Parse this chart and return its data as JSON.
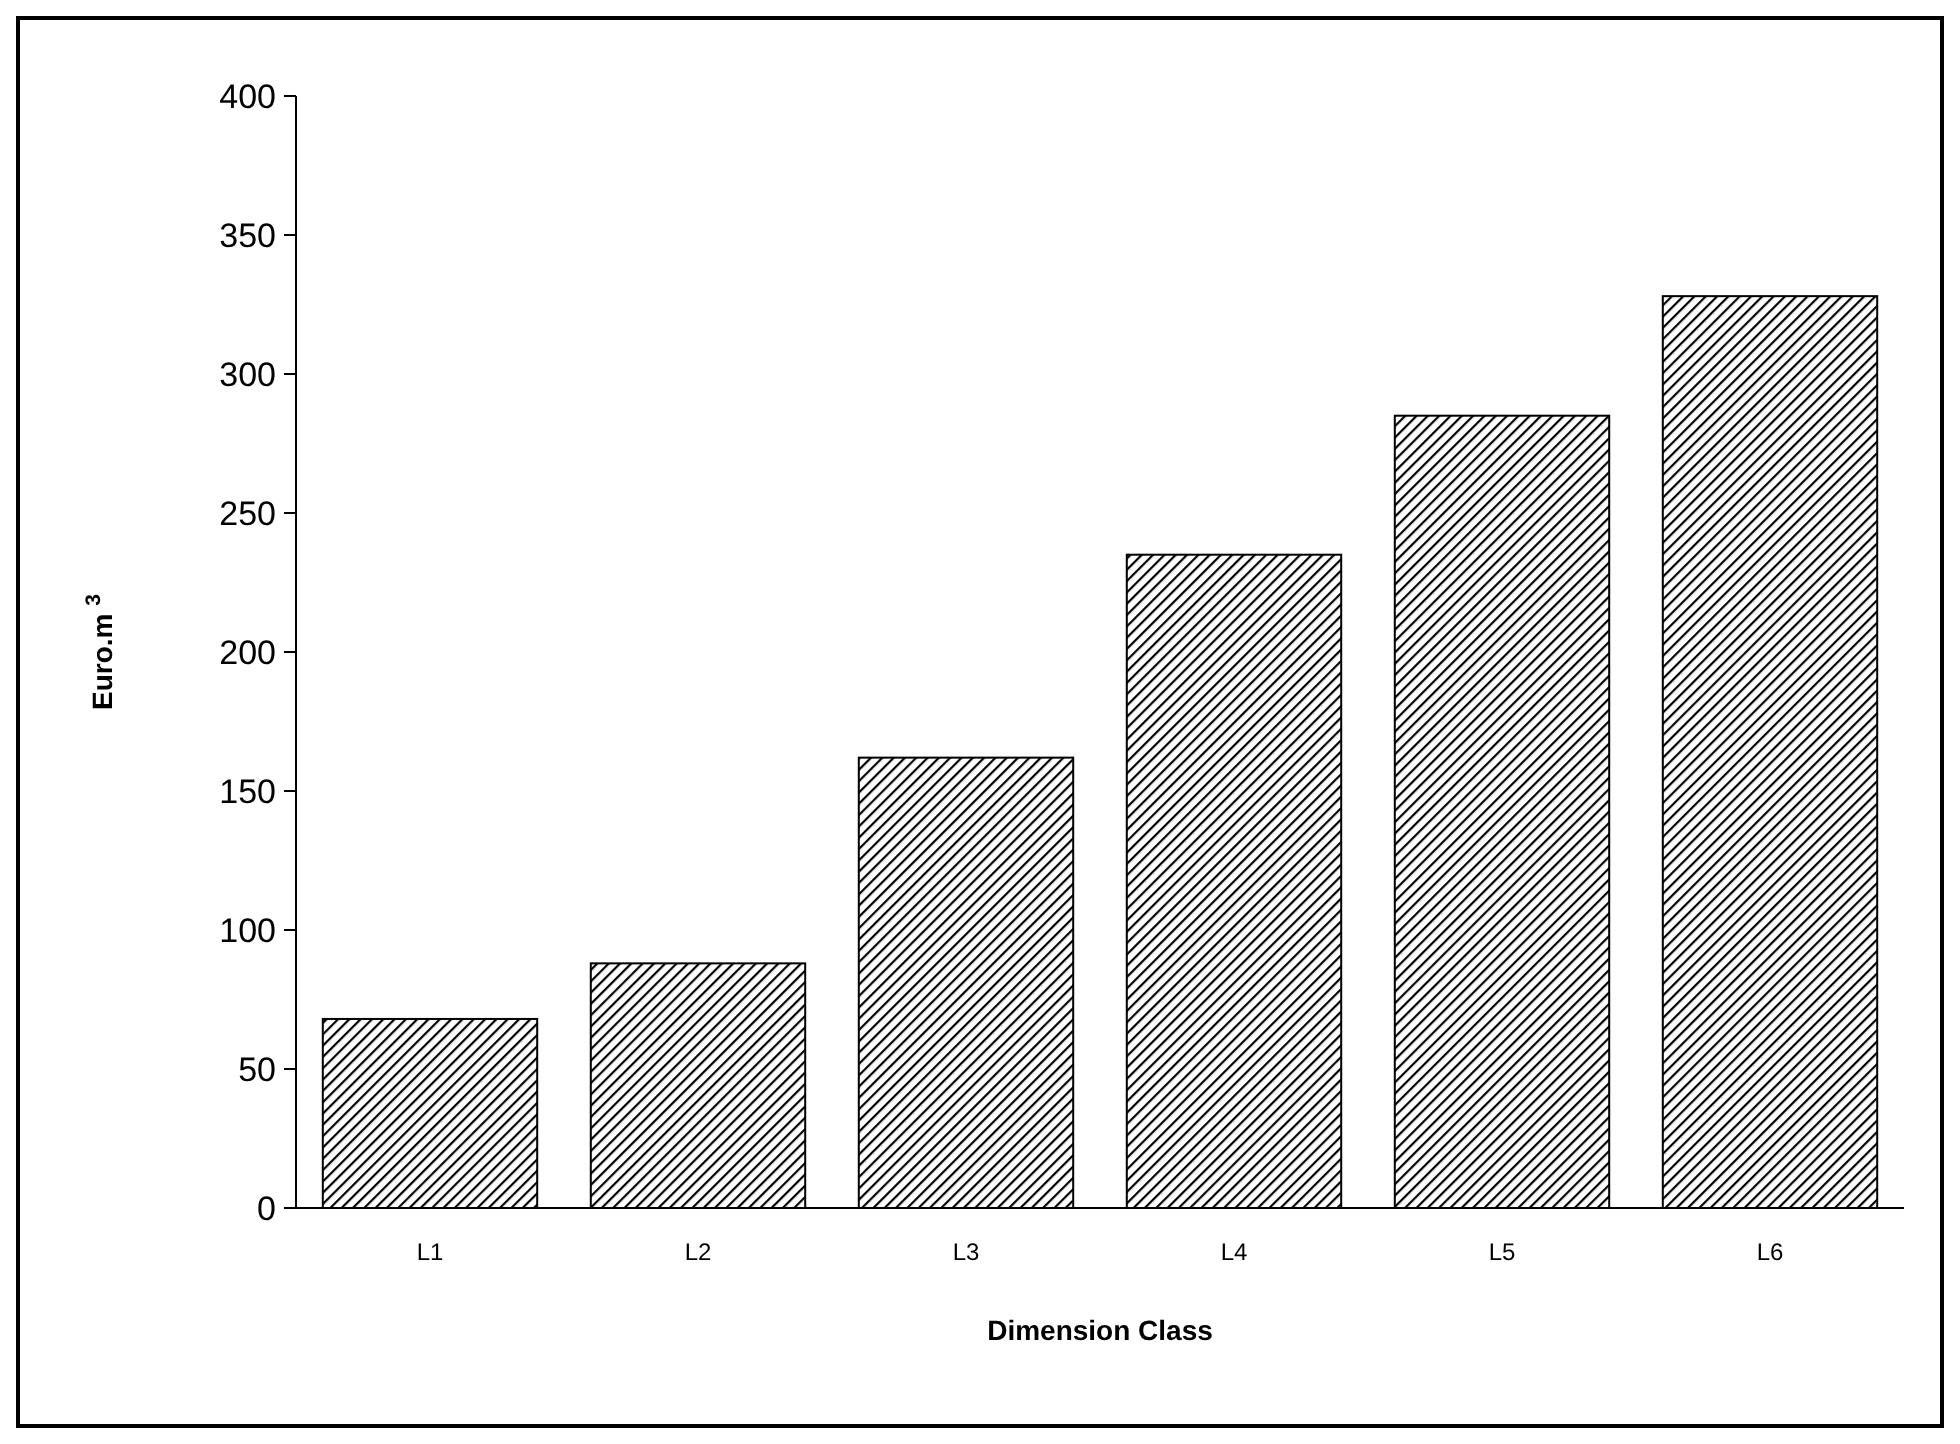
{
  "chart_data": {
    "type": "bar",
    "xlabel": "Dimension  Class",
    "ylabel": "Euro.m $^{3}$",
    "categories": [
      "L1",
      "L2",
      "L3",
      "L4",
      "L5",
      "L6"
    ],
    "values": [
      68,
      88,
      162,
      235,
      285,
      328
    ],
    "color": "#000000",
    "ylim": [
      0,
      400
    ],
    "yticks": [
      0,
      50,
      100,
      150,
      200,
      250,
      300,
      350,
      400
    ],
    "grid": false
  }
}
